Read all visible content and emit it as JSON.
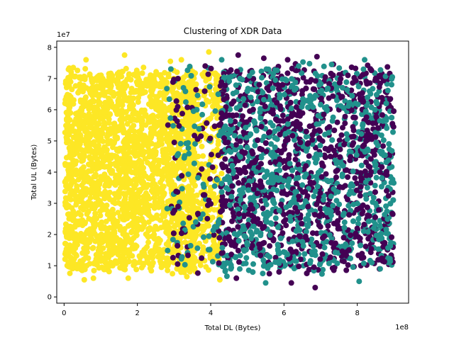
{
  "chart_data": {
    "type": "scatter",
    "title": "Clustering of XDR Data",
    "xlabel": "Total DL (Bytes)",
    "ylabel": "Total UL (Bytes)",
    "x_offset_text": "1e8",
    "y_offset_text": "1e7",
    "x_tick_labels": [
      "0",
      "2",
      "4",
      "6",
      "8"
    ],
    "y_tick_labels": [
      "0",
      "1",
      "2",
      "3",
      "4",
      "5",
      "6",
      "7",
      "8"
    ],
    "xlim": [
      -20000000.0,
      940000000.0
    ],
    "ylim": [
      -2000000.0,
      82000000.0
    ],
    "xticks": [
      0,
      200000000.0,
      400000000.0,
      600000000.0,
      800000000.0
    ],
    "yticks": [
      0,
      10000000.0,
      20000000.0,
      30000000.0,
      40000000.0,
      50000000.0,
      60000000.0,
      70000000.0,
      80000000.0
    ],
    "grid": false,
    "legend": "none",
    "series": [
      {
        "color": "#fde725",
        "x_range": [
          2000000.0,
          430000000.0
        ],
        "y_range": [
          5500000.0,
          78000000.0
        ]
      },
      {
        "color": "#21918c",
        "x_range": [
          280000000.0,
          900000000.0
        ],
        "y_range": [
          4500000.0,
          77000000.0
        ]
      },
      {
        "color": "#440154",
        "x_range": [
          280000000.0,
          900000000.0
        ],
        "y_range": [
          3000000.0,
          77000000.0
        ]
      }
    ],
    "points": [
      [
        55000000.0,
        5500000.0,
        0
      ],
      [
        80000000.0,
        6000000.0,
        0
      ],
      [
        175000000.0,
        6000000.0,
        0
      ],
      [
        335000000.0,
        6500000.0,
        0
      ],
      [
        395000000.0,
        78500000.0,
        0
      ],
      [
        165000000.0,
        77500000.0,
        0
      ],
      [
        290000000.0,
        75500000.0,
        0
      ],
      [
        60000000.0,
        76000000.0,
        0
      ],
      [
        25000000.0,
        73500000.0,
        0
      ],
      [
        425000000.0,
        5500000.0,
        0
      ],
      [
        320000000.0,
        76000000.0,
        0
      ],
      [
        550000000.0,
        4500000.0,
        1
      ],
      [
        805000000.0,
        5000000.0,
        1
      ],
      [
        430000000.0,
        76000000.0,
        1
      ],
      [
        730000000.0,
        74500000.0,
        1
      ],
      [
        820000000.0,
        76000000.0,
        1
      ],
      [
        640000000.0,
        74000000.0,
        1
      ],
      [
        455000000.0,
        9000000.0,
        1
      ],
      [
        685000000.0,
        3000000.0,
        2
      ],
      [
        620000000.0,
        4500000.0,
        2
      ],
      [
        470000000.0,
        6000000.0,
        2
      ],
      [
        475000000.0,
        77500000.0,
        2
      ],
      [
        545000000.0,
        76500000.0,
        2
      ],
      [
        690000000.0,
        77000000.0,
        2
      ],
      [
        610000000.0,
        76000000.0,
        2
      ],
      [
        880000000.0,
        34000000.0,
        2
      ],
      [
        385000000.0,
        74000000.0,
        2
      ]
    ]
  }
}
